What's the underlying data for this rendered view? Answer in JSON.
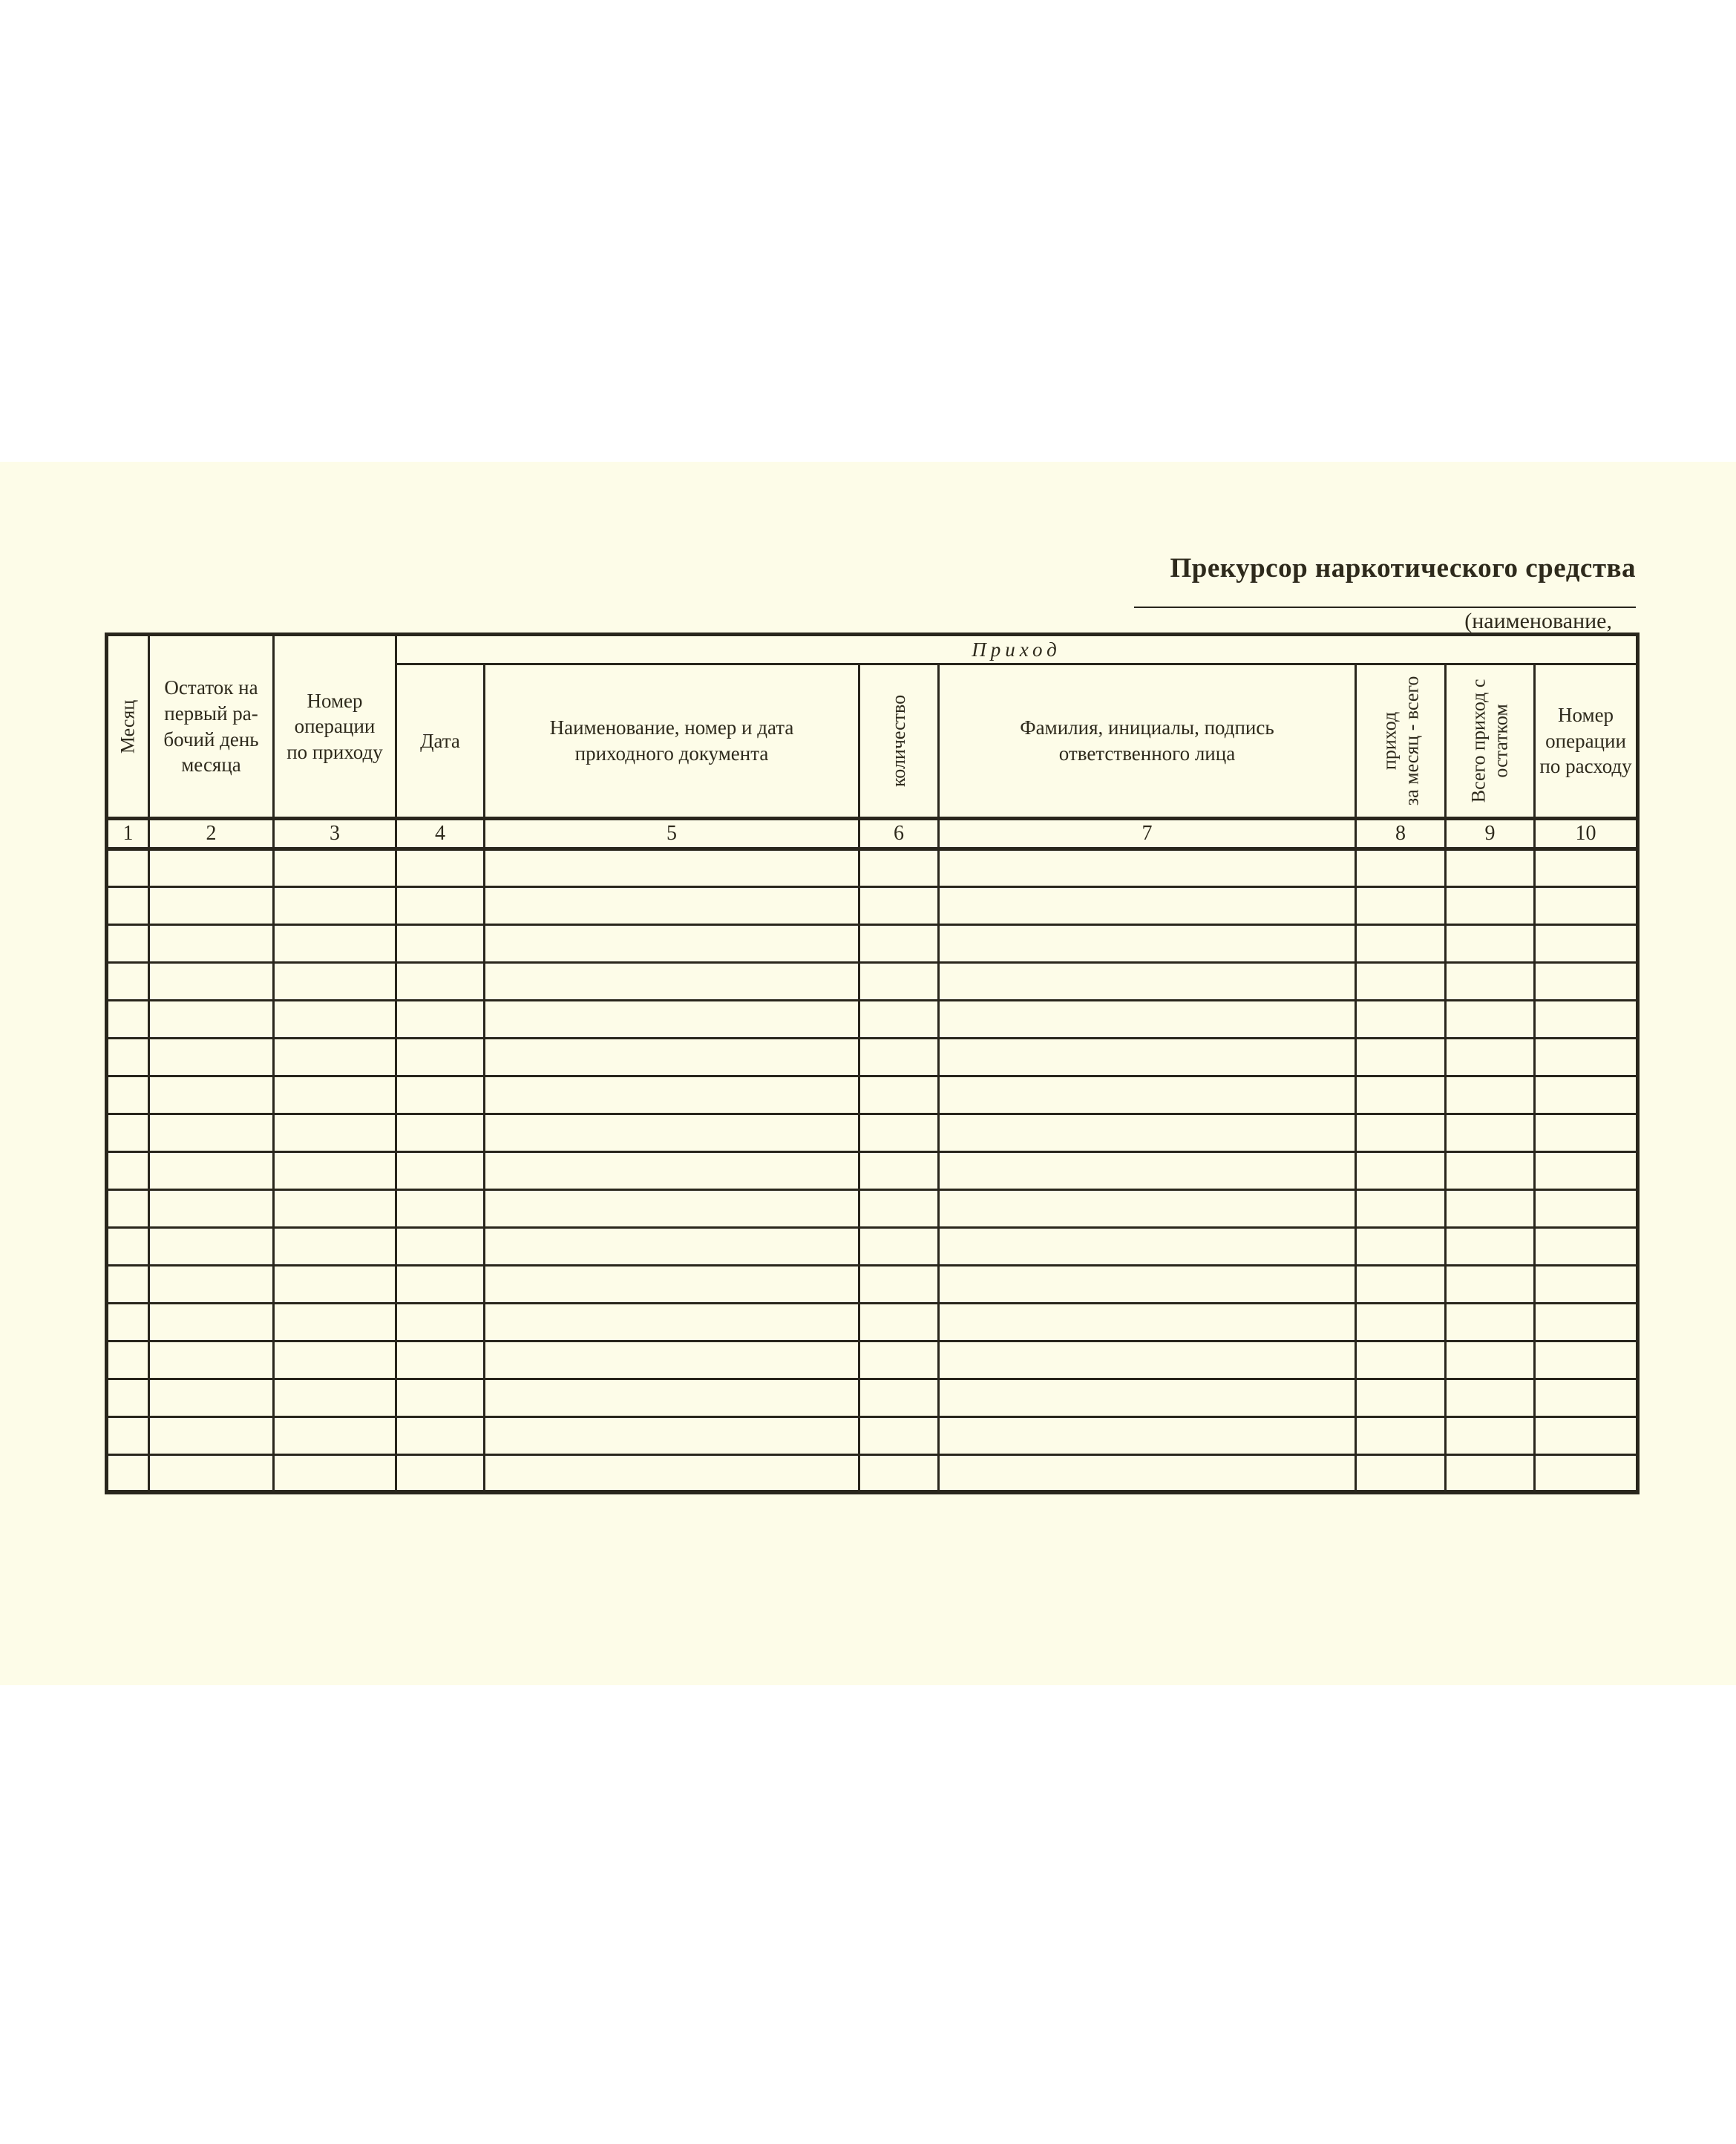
{
  "document": {
    "title": "Прекурсор наркотического средства",
    "name_caption": "(наименование,"
  },
  "ledger_table": {
    "income_section_label": "Приход",
    "columns": [
      {
        "num": "1",
        "label": "Месяц",
        "rotated": true
      },
      {
        "num": "2",
        "label": "Остаток на\nпервый ра-\nбочий день\nмесяца",
        "rotated": false
      },
      {
        "num": "3",
        "label": "Номер\nоперации\nпо приходу",
        "rotated": false
      },
      {
        "num": "4",
        "label": "Дата",
        "rotated": false
      },
      {
        "num": "5",
        "label": "Наименование, номер и дата\nприходного документа",
        "rotated": false
      },
      {
        "num": "6",
        "label": "количество",
        "rotated": true
      },
      {
        "num": "7",
        "label": "Фамилия, инициалы, подпись\nответственного лица",
        "rotated": false
      },
      {
        "num": "8",
        "label": "приход\nза месяц - всего",
        "rotated": true
      },
      {
        "num": "9",
        "label": "Всего приход с\nостатком",
        "rotated": true
      },
      {
        "num": "10",
        "label": "Номер\nоперации\nпо расходу",
        "rotated": false
      }
    ],
    "empty_data_row_count": 17
  },
  "colors": {
    "paper": "#fdfce8",
    "canvas": "#ffffff",
    "ink": "#29261c"
  }
}
